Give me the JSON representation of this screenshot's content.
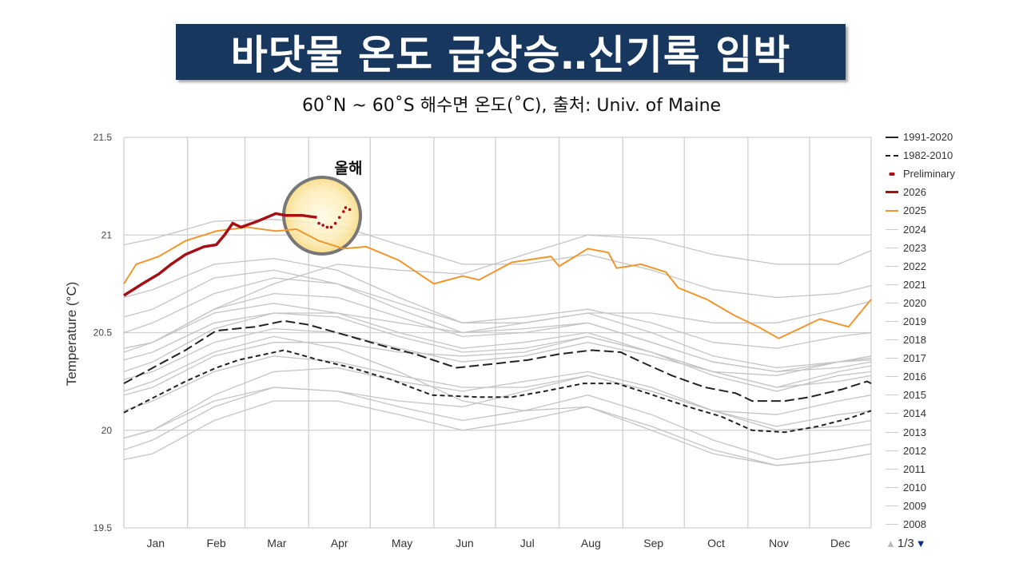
{
  "title": "바닷물 온도 급상승‥신기록 임박",
  "subtitle": "60˚N ~ 60˚S 해수면 온도(˚C), 출처: Univ. of Maine",
  "annotation": "올해",
  "pager": {
    "label": "1/3",
    "prev_icon": "triangle-up-icon",
    "next_icon": "triangle-down-icon"
  },
  "colors": {
    "title_bg": "#17375e",
    "y2026": "#a50f15",
    "y2025": "#f0962e",
    "mean": "#222222",
    "other_years": "#c4c4c4",
    "highlight": "#fbe9a8",
    "pager_active": "#0a2a8a"
  },
  "chart_data": {
    "type": "line",
    "ylabel": "Temperature (°C)",
    "xlabel": "",
    "ylim": [
      19.5,
      21.5
    ],
    "yticks": [
      "21.5",
      "21",
      "20.5",
      "20",
      "19.5"
    ],
    "xticks": [
      "Jan",
      "Feb",
      "Mar",
      "Apr",
      "May",
      "Jun",
      "Jul",
      "Aug",
      "Sep",
      "Oct",
      "Nov",
      "Dec"
    ],
    "x_unit": "day of year",
    "grid": true,
    "legend_placement": "right",
    "legend": [
      "1991-2020",
      "1982-2010",
      "Preliminary",
      "2026",
      "2025",
      "2024",
      "2023",
      "2022",
      "2021",
      "2020",
      "2019",
      "2018",
      "2017",
      "2016",
      "2015",
      "2014",
      "2013",
      "2012",
      "2011",
      "2010",
      "2009",
      "2008"
    ],
    "series_2026": {
      "name": "2026",
      "x": [
        1,
        10,
        18,
        24,
        31,
        40,
        46,
        50,
        54,
        58,
        66,
        75,
        80,
        88,
        95
      ],
      "y": [
        20.69,
        20.75,
        20.8,
        20.85,
        20.9,
        20.94,
        20.95,
        21.0,
        21.06,
        21.04,
        21.07,
        21.11,
        21.1,
        21.1,
        21.09
      ]
    },
    "preliminary": {
      "name": "Preliminary",
      "x": [
        96,
        98,
        100,
        102,
        104,
        106,
        108,
        109,
        111
      ],
      "y": [
        21.06,
        21.05,
        21.04,
        21.04,
        21.06,
        21.09,
        21.12,
        21.14,
        21.13
      ]
    },
    "series_2025": {
      "name": "2025",
      "x": [
        1,
        7,
        18,
        31,
        46,
        61,
        75,
        85,
        96,
        108,
        119,
        135,
        152,
        166,
        174,
        190,
        209,
        213,
        227,
        237,
        241,
        253,
        265,
        271,
        285,
        298,
        310,
        320,
        332,
        340,
        354,
        365
      ],
      "y": [
        20.75,
        20.85,
        20.89,
        20.97,
        21.02,
        21.04,
        21.02,
        21.03,
        20.97,
        20.93,
        20.94,
        20.87,
        20.75,
        20.79,
        20.77,
        20.86,
        20.89,
        20.84,
        20.93,
        20.91,
        20.83,
        20.85,
        20.81,
        20.73,
        20.67,
        20.59,
        20.53,
        20.47,
        20.53,
        20.57,
        20.53,
        20.67
      ]
    },
    "mean_1991_2020": {
      "name": "1991-2020",
      "x": [
        1,
        31,
        46,
        65,
        79,
        91,
        108,
        128,
        143,
        163,
        181,
        198,
        213,
        229,
        243,
        253,
        268,
        284,
        299,
        307,
        323,
        335,
        351,
        363,
        365
      ],
      "y": [
        20.24,
        20.41,
        20.51,
        20.53,
        20.56,
        20.54,
        20.49,
        20.43,
        20.39,
        20.32,
        20.34,
        20.36,
        20.39,
        20.41,
        20.4,
        20.35,
        20.28,
        20.22,
        20.19,
        20.15,
        20.15,
        20.17,
        20.21,
        20.25,
        20.24
      ]
    },
    "mean_1982_2010": {
      "name": "1982-2010",
      "x": [
        1,
        31,
        46,
        57,
        79,
        96,
        112,
        131,
        151,
        174,
        190,
        206,
        225,
        241,
        256,
        276,
        292,
        307,
        323,
        339,
        354,
        365
      ],
      "y": [
        20.09,
        20.25,
        20.32,
        20.36,
        20.41,
        20.36,
        20.32,
        20.26,
        20.18,
        20.17,
        20.17,
        20.2,
        20.24,
        20.24,
        20.19,
        20.12,
        20.07,
        20.0,
        19.99,
        20.02,
        20.06,
        20.1
      ]
    },
    "other_years": {
      "x": [
        1,
        15,
        45,
        74,
        105,
        135,
        166,
        196,
        227,
        258,
        288,
        319,
        349,
        365
      ],
      "series": [
        {
          "name": "2024",
          "y": [
            20.95,
            20.98,
            21.07,
            21.08,
            21.05,
            20.95,
            20.85,
            20.85,
            20.9,
            20.82,
            20.72,
            20.68,
            20.7,
            20.74
          ]
        },
        {
          "name": "2023",
          "y": [
            20.42,
            20.45,
            20.62,
            20.75,
            20.85,
            20.82,
            20.8,
            20.9,
            21.0,
            20.98,
            20.9,
            20.85,
            20.85,
            20.92
          ]
        },
        {
          "name": "2022",
          "y": [
            20.42,
            20.45,
            20.6,
            20.65,
            20.6,
            20.5,
            20.42,
            20.45,
            20.5,
            20.4,
            20.3,
            20.22,
            20.3,
            20.33
          ]
        },
        {
          "name": "2021",
          "y": [
            20.36,
            20.4,
            20.55,
            20.6,
            20.58,
            20.48,
            20.4,
            20.42,
            20.48,
            20.4,
            20.28,
            20.2,
            20.28,
            20.3
          ]
        },
        {
          "name": "2020",
          "y": [
            20.58,
            20.62,
            20.78,
            20.82,
            20.75,
            20.62,
            20.5,
            20.52,
            20.55,
            20.45,
            20.35,
            20.3,
            20.35,
            20.36
          ]
        },
        {
          "name": "2019",
          "y": [
            20.5,
            20.55,
            20.7,
            20.78,
            20.75,
            20.65,
            20.55,
            20.58,
            20.62,
            20.55,
            20.45,
            20.42,
            20.48,
            20.5
          ]
        },
        {
          "name": "2018",
          "y": [
            20.26,
            20.3,
            20.45,
            20.52,
            20.5,
            20.42,
            20.35,
            20.38,
            20.45,
            20.38,
            20.3,
            20.28,
            20.35,
            20.38
          ]
        },
        {
          "name": "2017",
          "y": [
            20.4,
            20.45,
            20.62,
            20.7,
            20.68,
            20.58,
            20.48,
            20.5,
            20.55,
            20.45,
            20.35,
            20.3,
            20.32,
            20.35
          ]
        },
        {
          "name": "2016",
          "y": [
            20.68,
            20.72,
            20.85,
            20.88,
            20.82,
            20.68,
            20.55,
            20.55,
            20.6,
            20.5,
            20.38,
            20.32,
            20.35,
            20.37
          ]
        },
        {
          "name": "2015",
          "y": [
            20.3,
            20.35,
            20.52,
            20.6,
            20.6,
            20.55,
            20.5,
            20.55,
            20.6,
            20.6,
            20.55,
            20.55,
            20.62,
            20.66
          ]
        },
        {
          "name": "2014",
          "y": [
            20.18,
            20.22,
            20.38,
            20.45,
            20.45,
            20.4,
            20.38,
            20.4,
            20.48,
            20.4,
            20.3,
            20.22,
            20.25,
            20.28
          ]
        },
        {
          "name": "2013",
          "y": [
            20.1,
            20.15,
            20.3,
            20.38,
            20.35,
            20.28,
            20.22,
            20.22,
            20.28,
            20.2,
            20.1,
            20.02,
            20.08,
            20.1
          ]
        },
        {
          "name": "2012",
          "y": [
            19.96,
            20.0,
            20.18,
            20.3,
            20.32,
            20.25,
            20.2,
            20.25,
            20.3,
            20.22,
            20.1,
            20.0,
            20.02,
            20.05
          ]
        },
        {
          "name": "2011",
          "y": [
            19.9,
            19.95,
            20.12,
            20.22,
            20.2,
            20.12,
            20.05,
            20.1,
            20.18,
            20.08,
            19.95,
            19.85,
            19.9,
            19.93
          ]
        },
        {
          "name": "2010",
          "y": [
            20.2,
            20.25,
            20.4,
            20.48,
            20.42,
            20.3,
            20.15,
            20.1,
            20.12,
            20.0,
            19.88,
            19.82,
            19.85,
            19.88
          ]
        },
        {
          "name": "2009",
          "y": [
            19.96,
            20.0,
            20.15,
            20.22,
            20.2,
            20.15,
            20.12,
            20.2,
            20.28,
            20.2,
            20.1,
            20.08,
            20.15,
            20.18
          ]
        },
        {
          "name": "2008",
          "y": [
            19.85,
            19.88,
            20.05,
            20.15,
            20.15,
            20.08,
            20.0,
            20.05,
            20.12,
            20.02,
            19.9,
            19.82,
            19.85,
            19.88
          ]
        }
      ]
    }
  }
}
